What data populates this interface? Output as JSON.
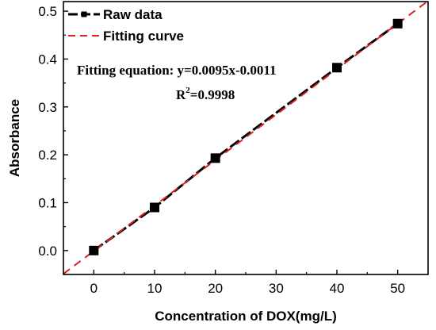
{
  "chart_data": {
    "type": "scatter",
    "title": "",
    "xlabel": "Concentration of DOX(mg/L)",
    "ylabel": "Absorbance",
    "xlim": [
      -5,
      55
    ],
    "ylim": [
      -0.05,
      0.52
    ],
    "xticks": [
      0,
      10,
      20,
      30,
      40,
      50
    ],
    "xtick_labels": [
      "0",
      "10",
      "20",
      "30",
      "40",
      "50"
    ],
    "yticks": [
      0.0,
      0.1,
      0.2,
      0.3,
      0.4,
      0.5
    ],
    "ytick_labels": [
      "0.0",
      "0.1",
      "0.2",
      "0.3",
      "0.4",
      "0.5"
    ],
    "grid": false,
    "legend_position": "top-left",
    "series": [
      {
        "name": "Raw data",
        "style": "black line with square markers",
        "color": "#000000",
        "x": [
          0,
          10,
          20,
          40,
          50
        ],
        "y": [
          0.0,
          0.09,
          0.193,
          0.382,
          0.474
        ]
      },
      {
        "name": "Fitting curve",
        "style": "red dashed line",
        "color": "#e02020",
        "slope": 0.0095,
        "intercept": -0.0011,
        "x": [
          -5,
          55
        ],
        "y": [
          -0.0486,
          0.5214
        ]
      }
    ],
    "annotations": {
      "equation": "Fitting equation: y=0.0095x-0.0011",
      "r2_base": "R",
      "r2_sup": "2",
      "r2_value": "=0.9998"
    }
  }
}
